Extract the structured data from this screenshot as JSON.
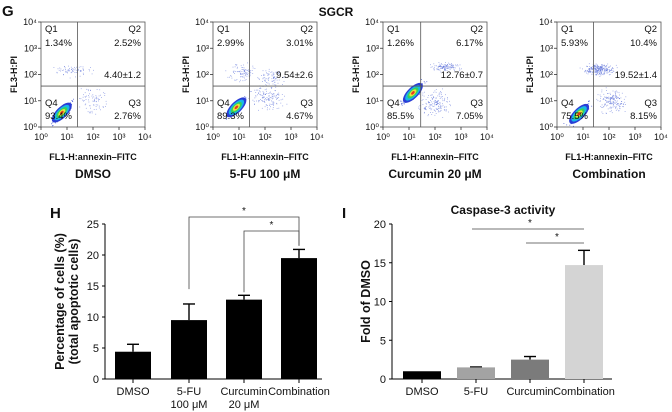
{
  "panel_labels": {
    "g": "G",
    "h": "H",
    "i": "I"
  },
  "flow": {
    "title": "SGCR",
    "xlabel": "FL1-H:annexin–FITC",
    "ylabel": "FL3-H:PI",
    "ticks": [
      "10⁰",
      "10¹",
      "10²",
      "10³",
      "10⁴"
    ],
    "quadrant_names": [
      "Q1",
      "Q2",
      "Q3",
      "Q4"
    ],
    "panels": [
      {
        "name": "DMSO",
        "q1": "1.34%",
        "q2": "2.52%",
        "q3": "2.76%",
        "q4": "93.4%",
        "total_apoptosis": "4.40±1.2",
        "gate_x_log": 1.4,
        "gate_y_log": 1.56
      },
      {
        "name": "5-FU 100 μM",
        "q1": "2.99%",
        "q2": "3.01%",
        "q3": "4.67%",
        "q4": "89.3%",
        "total_apoptosis": "9.54±2.6",
        "gate_x_log": 1.4,
        "gate_y_log": 1.56
      },
      {
        "name": "Curcumin 20 μM",
        "q1": "1.26%",
        "q2": "6.17%",
        "q3": "7.05%",
        "q4": "85.5%",
        "total_apoptosis": "12.76±0.7",
        "gate_x_log": 1.45,
        "gate_y_log": 1.56
      },
      {
        "name": "Combination",
        "q1": "5.93%",
        "q2": "10.4%",
        "q3": "8.15%",
        "q4": "75.5%",
        "total_apoptosis": "19.52±1.4",
        "gate_x_log": 1.4,
        "gate_y_log": 1.56
      }
    ]
  },
  "chart_data": [
    {
      "type": "bar",
      "title": "",
      "categories": [
        "DMSO",
        "5-FU\n100 μM",
        "Curcumin\n20 μM",
        "Combination"
      ],
      "category_lines": [
        [
          "DMSO"
        ],
        [
          "5-FU",
          "100 μM"
        ],
        [
          "Curcumin",
          "20 μM"
        ],
        [
          "Combination"
        ]
      ],
      "values": [
        4.4,
        9.5,
        12.8,
        19.5
      ],
      "errors": [
        1.2,
        2.6,
        0.7,
        1.4
      ],
      "colors": [
        "#000000",
        "#000000",
        "#000000",
        "#000000"
      ],
      "ylabel": [
        "Percentage of cells (%)",
        "(total apoptotic cells)"
      ],
      "ylim": [
        0,
        25
      ],
      "yticks": [
        "0",
        "5",
        "10",
        "15",
        "20",
        "25"
      ],
      "significance": [
        {
          "from": 1,
          "to": 3,
          "label": "*"
        },
        {
          "from": 2,
          "to": 3,
          "label": "*"
        }
      ]
    },
    {
      "type": "bar",
      "title": "Caspase-3 activity",
      "categories": [
        "DMSO",
        "5-FU",
        "Curcumin",
        "Combination"
      ],
      "category_lines": [
        [
          "DMSO"
        ],
        [
          "5-FU"
        ],
        [
          "Curcumin"
        ],
        [
          "Combination"
        ]
      ],
      "values": [
        1.0,
        1.5,
        2.5,
        14.7
      ],
      "errors": [
        0,
        0.05,
        0.4,
        1.9
      ],
      "colors": [
        "#000000",
        "#a3a3a3",
        "#7b7b7b",
        "#d4d4d4"
      ],
      "ylabel": [
        "Fold of DMSO"
      ],
      "ylim": [
        0,
        20
      ],
      "yticks": [
        "0",
        "5",
        "10",
        "15",
        "20"
      ],
      "significance": [
        {
          "from": 1,
          "to": 3,
          "label": "*"
        },
        {
          "from": 2,
          "to": 3,
          "label": "*"
        }
      ]
    }
  ]
}
